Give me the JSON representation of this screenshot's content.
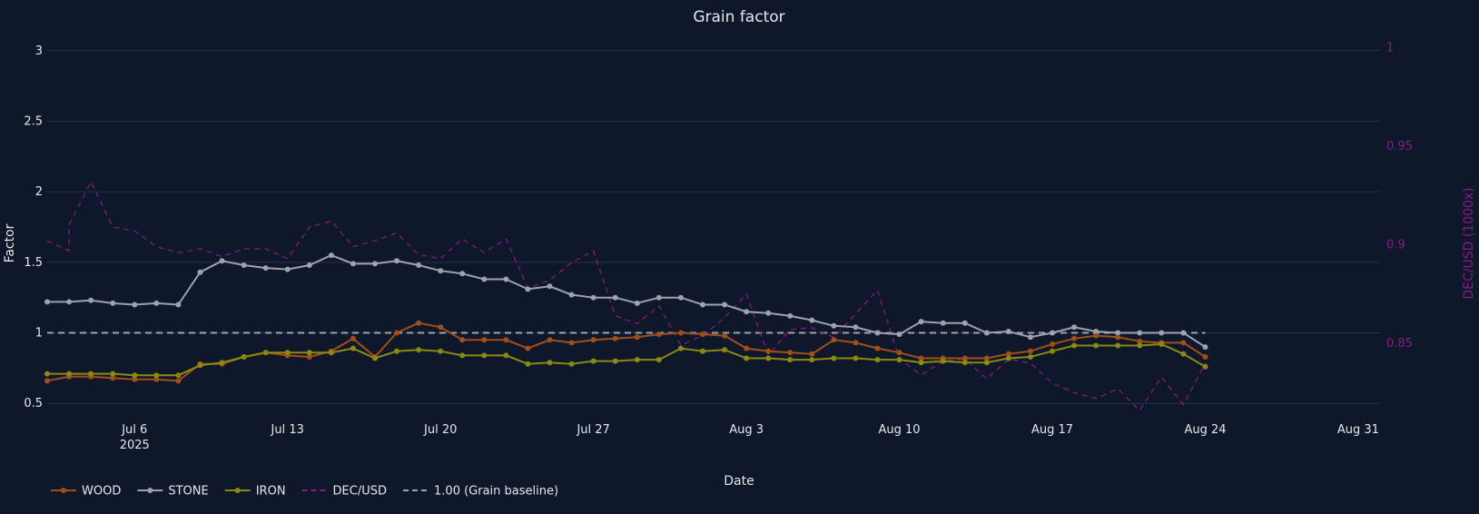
{
  "chart_data": {
    "type": "line",
    "title": "Grain factor",
    "xlabel": "Date",
    "ylabel": "Factor",
    "y2label": "DEC/USD (1000x)",
    "ylim": [
      0.45,
      3.05
    ],
    "y2lim": [
      0.816,
      1.002
    ],
    "xlim": [
      "2025-07-02",
      "2025-09-01"
    ],
    "grid": true,
    "legend_position": "bottom-left",
    "x_ticks": [
      {
        "date": "2025-07-06",
        "label": "Jul 6",
        "sublabel": "2025"
      },
      {
        "date": "2025-07-13",
        "label": "Jul 13"
      },
      {
        "date": "2025-07-20",
        "label": "Jul 20"
      },
      {
        "date": "2025-07-27",
        "label": "Jul 27"
      },
      {
        "date": "2025-08-03",
        "label": "Aug 3"
      },
      {
        "date": "2025-08-10",
        "label": "Aug 10"
      },
      {
        "date": "2025-08-17",
        "label": "Aug 17"
      },
      {
        "date": "2025-08-24",
        "label": "Aug 24"
      },
      {
        "date": "2025-08-31",
        "label": "Aug 31"
      }
    ],
    "y_ticks": [
      0.5,
      1,
      1.5,
      2,
      2.5,
      3
    ],
    "y_tick_labels": [
      "0.5",
      "1",
      "1.5",
      "2",
      "2.5",
      "3"
    ],
    "y2_ticks": [
      0.85,
      0.9,
      0.95,
      1
    ],
    "y2_tick_labels": [
      "0.85",
      "0.9",
      "0.95",
      "1"
    ],
    "x": [
      "2025-07-02",
      "2025-07-03",
      "2025-07-04",
      "2025-07-05",
      "2025-07-06",
      "2025-07-07",
      "2025-07-08",
      "2025-07-09",
      "2025-07-10",
      "2025-07-11",
      "2025-07-12",
      "2025-07-13",
      "2025-07-14",
      "2025-07-15",
      "2025-07-16",
      "2025-07-17",
      "2025-07-18",
      "2025-07-19",
      "2025-07-20",
      "2025-07-21",
      "2025-07-22",
      "2025-07-23",
      "2025-07-24",
      "2025-07-25",
      "2025-07-26",
      "2025-07-27",
      "2025-07-28",
      "2025-07-29",
      "2025-07-30",
      "2025-07-31",
      "2025-08-01",
      "2025-08-02",
      "2025-08-03",
      "2025-08-04",
      "2025-08-05",
      "2025-08-06",
      "2025-08-07",
      "2025-08-08",
      "2025-08-09",
      "2025-08-10",
      "2025-08-11",
      "2025-08-12",
      "2025-08-13",
      "2025-08-14",
      "2025-08-15",
      "2025-08-16",
      "2025-08-17",
      "2025-08-18",
      "2025-08-19",
      "2025-08-20",
      "2025-08-21",
      "2025-08-22",
      "2025-08-23",
      "2025-08-24"
    ],
    "series": [
      {
        "name": "WOOD",
        "color": "#a14f1a",
        "markers": true,
        "axis": "y",
        "values": [
          0.66,
          0.69,
          0.69,
          0.68,
          0.67,
          0.67,
          0.66,
          0.78,
          0.78,
          0.83,
          0.86,
          0.84,
          0.83,
          0.87,
          0.96,
          0.83,
          1.0,
          1.07,
          1.04,
          0.95,
          0.95,
          0.95,
          0.89,
          0.95,
          0.93,
          0.95,
          0.96,
          0.97,
          0.99,
          1.0,
          0.99,
          0.98,
          0.89,
          0.87,
          0.86,
          0.85,
          0.95,
          0.93,
          0.89,
          0.86,
          0.82,
          0.82,
          0.82,
          0.82,
          0.85,
          0.87,
          0.92,
          0.96,
          0.98,
          0.97,
          0.94,
          0.93,
          0.93,
          0.83
        ]
      },
      {
        "name": "STONE",
        "color": "#9ca3af",
        "markers": true,
        "axis": "y",
        "values": [
          1.22,
          1.22,
          1.23,
          1.21,
          1.2,
          1.21,
          1.2,
          1.43,
          1.51,
          1.48,
          1.46,
          1.45,
          1.48,
          1.55,
          1.49,
          1.49,
          1.51,
          1.48,
          1.44,
          1.42,
          1.38,
          1.38,
          1.31,
          1.33,
          1.27,
          1.25,
          1.25,
          1.21,
          1.25,
          1.25,
          1.2,
          1.2,
          1.15,
          1.14,
          1.12,
          1.09,
          1.05,
          1.04,
          1.0,
          0.99,
          1.08,
          1.07,
          1.07,
          1.0,
          1.01,
          0.97,
          1.0,
          1.04,
          1.01,
          1.0,
          1.0,
          1.0,
          1.0,
          0.9
        ]
      },
      {
        "name": "IRON",
        "color": "#8a8a10",
        "markers": true,
        "axis": "y",
        "values": [
          0.71,
          0.71,
          0.71,
          0.71,
          0.7,
          0.7,
          0.7,
          0.77,
          0.79,
          0.83,
          0.86,
          0.86,
          0.86,
          0.86,
          0.89,
          0.82,
          0.87,
          0.88,
          0.87,
          0.84,
          0.84,
          0.84,
          0.78,
          0.79,
          0.78,
          0.8,
          0.8,
          0.81,
          0.81,
          0.89,
          0.87,
          0.88,
          0.82,
          0.82,
          0.81,
          0.81,
          0.82,
          0.82,
          0.81,
          0.81,
          0.79,
          0.8,
          0.79,
          0.79,
          0.82,
          0.83,
          0.87,
          0.91,
          0.91,
          0.91,
          0.91,
          0.92,
          0.85,
          0.76
        ]
      },
      {
        "name": "DEC/USD",
        "color": "#8b1a8b",
        "markers": false,
        "dash": "dash",
        "axis": "y2",
        "x": [
          "2025-07-02",
          "2025-07-03",
          "2025-07-03",
          "2025-07-04",
          "2025-07-05",
          "2025-07-06",
          "2025-07-07",
          "2025-07-08",
          "2025-07-09",
          "2025-07-10",
          "2025-07-11",
          "2025-07-12",
          "2025-07-13",
          "2025-07-14",
          "2025-07-15",
          "2025-07-16",
          "2025-07-17",
          "2025-07-18",
          "2025-07-19",
          "2025-07-20",
          "2025-07-21",
          "2025-07-22",
          "2025-07-23",
          "2025-07-24",
          "2025-07-25",
          "2025-07-26",
          "2025-07-27",
          "2025-07-28",
          "2025-07-29",
          "2025-07-30",
          "2025-07-31",
          "2025-08-01",
          "2025-08-02",
          "2025-08-03",
          "2025-08-04",
          "2025-08-05",
          "2025-08-06",
          "2025-08-07",
          "2025-08-08",
          "2025-08-09",
          "2025-08-10",
          "2025-08-11",
          "2025-08-12",
          "2025-08-13",
          "2025-08-14",
          "2025-08-15",
          "2025-08-16",
          "2025-08-17",
          "2025-08-18",
          "2025-08-19",
          "2025-08-20",
          "2025-08-21",
          "2025-08-22",
          "2025-08-23",
          "2025-08-24"
        ],
        "values": [
          0.902,
          0.897,
          0.91,
          0.932,
          0.909,
          0.907,
          0.899,
          0.896,
          0.898,
          0.894,
          0.898,
          0.898,
          0.893,
          0.909,
          0.912,
          0.899,
          0.902,
          0.906,
          0.895,
          0.893,
          0.903,
          0.896,
          0.903,
          0.878,
          0.882,
          0.891,
          0.897,
          0.864,
          0.86,
          0.869,
          0.849,
          0.854,
          0.863,
          0.875,
          0.844,
          0.857,
          0.858,
          0.853,
          0.865,
          0.877,
          0.842,
          0.834,
          0.841,
          0.842,
          0.832,
          0.842,
          0.84,
          0.83,
          0.825,
          0.822,
          0.827,
          0.816,
          0.833,
          0.819,
          0.84
        ]
      },
      {
        "name": "1.00 (Grain baseline)",
        "color": "#9ca3af",
        "markers": false,
        "dash": "dash",
        "axis": "y",
        "x": [
          "2025-07-02",
          "2025-08-24"
        ],
        "values": [
          1.0,
          1.0
        ]
      }
    ]
  }
}
